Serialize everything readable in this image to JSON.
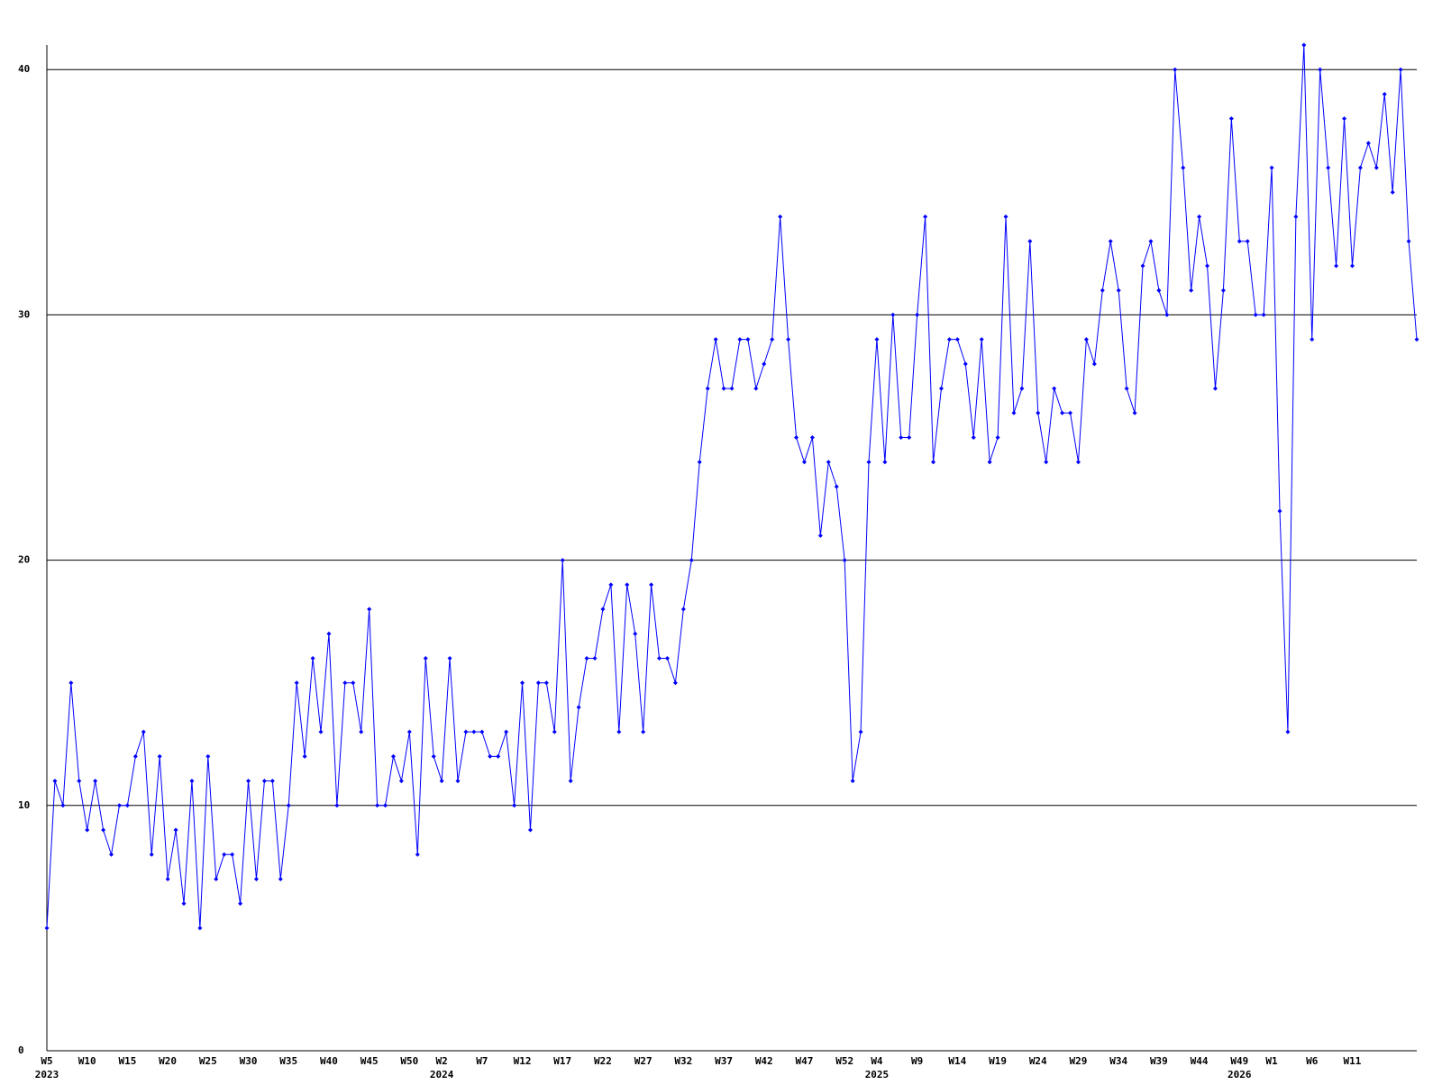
{
  "chart_data": {
    "type": "line",
    "categories": [
      "W5",
      null,
      null,
      null,
      null,
      "W10",
      null,
      null,
      null,
      null,
      "W15",
      null,
      null,
      null,
      null,
      "W20",
      null,
      null,
      null,
      null,
      "W25",
      null,
      null,
      null,
      null,
      "W30",
      null,
      null,
      null,
      null,
      "W35",
      null,
      null,
      null,
      null,
      "W40",
      null,
      null,
      null,
      null,
      "W45",
      null,
      null,
      null,
      null,
      "W50",
      null,
      null,
      null,
      "W2",
      null,
      null,
      null,
      null,
      "W7",
      null,
      null,
      null,
      null,
      "W12",
      null,
      null,
      null,
      null,
      "W17",
      null,
      null,
      null,
      null,
      "W22",
      null,
      null,
      null,
      null,
      "W27",
      null,
      null,
      null,
      null,
      "W32",
      null,
      null,
      null,
      null,
      "W37",
      null,
      null,
      null,
      null,
      "W42",
      null,
      null,
      null,
      null,
      "W47",
      null,
      null,
      null,
      null,
      "W52",
      null,
      null,
      null,
      "W4",
      null,
      null,
      null,
      null,
      "W9",
      null,
      null,
      null,
      null,
      "W14",
      null,
      null,
      null,
      null,
      "W19",
      null,
      null,
      null,
      null,
      "W24",
      null,
      null,
      null,
      null,
      "W29",
      null,
      null,
      null,
      null,
      "W34",
      null,
      null,
      null,
      null,
      "W39",
      null,
      null,
      null,
      null,
      "W44",
      null,
      null,
      null,
      null,
      "W49",
      null,
      null,
      null,
      "W1",
      null,
      null,
      null,
      null,
      "W6",
      null,
      null,
      null,
      null,
      "W11",
      null,
      null,
      null,
      null,
      null,
      null,
      null,
      null
    ],
    "category_years": [
      "2023",
      null,
      null,
      null,
      null,
      null,
      null,
      null,
      null,
      null,
      null,
      null,
      null,
      null,
      null,
      null,
      null,
      null,
      null,
      null,
      null,
      null,
      null,
      null,
      null,
      null,
      null,
      null,
      null,
      null,
      null,
      null,
      null,
      null,
      null,
      null,
      null,
      null,
      null,
      null,
      null,
      null,
      null,
      null,
      null,
      null,
      null,
      null,
      null,
      "2024",
      null,
      null,
      null,
      null,
      null,
      null,
      null,
      null,
      null,
      null,
      null,
      null,
      null,
      null,
      null,
      null,
      null,
      null,
      null,
      null,
      null,
      null,
      null,
      null,
      null,
      null,
      null,
      null,
      null,
      null,
      null,
      null,
      null,
      null,
      null,
      null,
      null,
      null,
      null,
      null,
      null,
      null,
      null,
      null,
      null,
      null,
      null,
      null,
      null,
      null,
      null,
      null,
      null,
      "2025",
      null,
      null,
      null,
      null,
      null,
      null,
      null,
      null,
      null,
      null,
      null,
      null,
      null,
      null,
      null,
      null,
      null,
      null,
      null,
      null,
      null,
      null,
      null,
      null,
      null,
      null,
      null,
      null,
      null,
      null,
      null,
      null,
      null,
      null,
      null,
      null,
      null,
      null,
      null,
      null,
      null,
      null,
      null,
      null,
      "2026",
      null,
      null,
      null,
      null,
      null,
      null,
      null,
      null,
      null,
      null,
      null,
      null,
      null,
      null,
      null,
      null,
      null,
      null
    ],
    "series": [
      {
        "color": "#0000ff",
        "values": [
          5,
          11,
          10,
          15,
          11,
          9,
          11,
          9,
          8,
          10,
          10,
          12,
          13,
          8,
          12,
          7,
          9,
          6,
          11,
          5,
          12,
          7,
          8,
          8,
          6,
          11,
          7,
          11,
          11,
          7,
          10,
          15,
          12,
          16,
          13,
          17,
          10,
          15,
          15,
          13,
          18,
          10,
          10,
          12,
          11,
          13,
          8,
          16,
          12,
          11,
          16,
          11,
          13,
          13,
          13,
          12,
          12,
          13,
          10,
          15,
          9,
          15,
          15,
          13,
          20,
          11,
          14,
          16,
          16,
          18,
          19,
          13,
          19,
          17,
          13,
          19,
          16,
          16,
          15,
          18,
          20,
          24,
          27,
          29,
          27,
          27,
          29,
          29,
          27,
          28,
          29,
          34,
          29,
          25,
          24,
          25,
          21,
          24,
          23,
          20,
          11,
          13,
          24,
          29,
          24,
          30,
          25,
          25,
          30,
          34,
          24,
          27,
          29,
          29,
          28,
          25,
          29,
          24,
          25,
          34,
          26,
          27,
          33,
          26,
          24,
          27,
          26,
          26,
          24,
          29,
          28,
          31,
          33,
          31,
          27,
          26,
          32,
          33,
          31,
          30,
          40,
          36,
          31,
          34,
          32,
          27,
          31,
          38,
          33,
          33,
          30,
          30,
          36,
          22,
          13,
          34,
          41,
          29,
          40,
          36,
          32,
          38,
          32,
          36,
          37,
          36,
          39,
          35,
          40,
          33,
          29
        ]
      }
    ],
    "ylim": [
      0,
      41
    ],
    "yticks": [
      0,
      10,
      20,
      30,
      40
    ],
    "grid": true
  }
}
